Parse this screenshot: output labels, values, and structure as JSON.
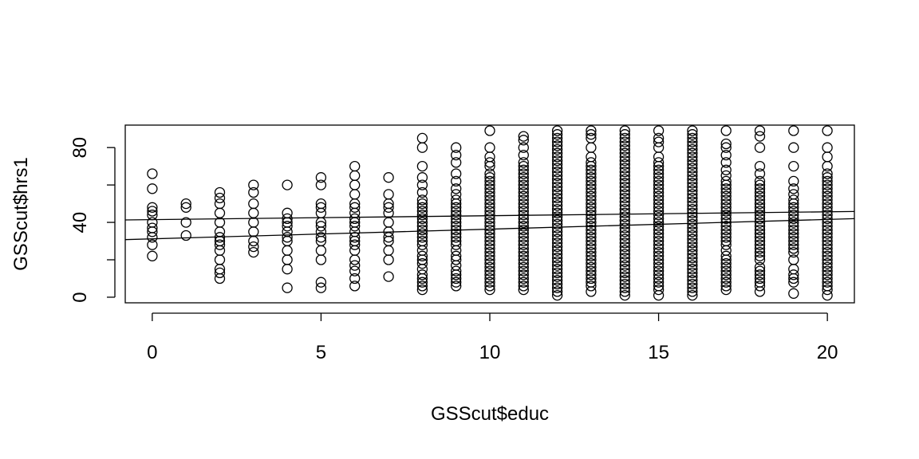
{
  "chart_data": {
    "type": "scatter",
    "xlabel": "GSScut$educ",
    "ylabel": "GSScut$hrs1",
    "xlim": [
      -0.8,
      20.8
    ],
    "ylim": [
      -3,
      92
    ],
    "x_ticks": [
      0,
      5,
      10,
      15,
      20
    ],
    "x_tick_labels": [
      "0",
      "5",
      "10",
      "15",
      "20"
    ],
    "y_ticks": [
      0,
      20,
      40,
      60,
      80
    ],
    "y_tick_labels": [
      "0",
      "40",
      "80"
    ],
    "y_labeled_ticks": [
      0,
      40,
      80
    ],
    "grid": false,
    "series": [
      {
        "marker": "open-circle",
        "points_by_x": [
          {
            "x": 0,
            "y": [
              66,
              58,
              48,
              46,
              44,
              40,
              37,
              35,
              32,
              28,
              22
            ]
          },
          {
            "x": 1,
            "y": [
              50,
              48,
              40,
              33
            ]
          },
          {
            "x": 2,
            "y": [
              56,
              53,
              50,
              45,
              40,
              35,
              32,
              30,
              28,
              25,
              20,
              15,
              13,
              10
            ]
          },
          {
            "x": 3,
            "y": [
              60,
              56,
              50,
              45,
              40,
              35,
              30,
              27,
              24
            ]
          },
          {
            "x": 4,
            "y": [
              60,
              45,
              42,
              40,
              38,
              35,
              32,
              30,
              25,
              20,
              15,
              5
            ]
          },
          {
            "x": 5,
            "y": [
              64,
              60,
              50,
              48,
              45,
              40,
              38,
              35,
              32,
              30,
              25,
              20,
              8,
              5
            ]
          },
          {
            "x": 6,
            "y": [
              70,
              65,
              60,
              55,
              50,
              48,
              45,
              42,
              40,
              38,
              35,
              32,
              30,
              28,
              25,
              20,
              17,
              14,
              10,
              6
            ]
          },
          {
            "x": 7,
            "y": [
              64,
              55,
              50,
              48,
              45,
              40,
              35,
              32,
              30,
              25,
              20,
              11
            ]
          },
          {
            "x": 8,
            "y": [
              85,
              80,
              70,
              64,
              60,
              56,
              52,
              50,
              48,
              46,
              44,
              42,
              40,
              38,
              36,
              34,
              32,
              30,
              28,
              25,
              22,
              20,
              18,
              15,
              12,
              10,
              8,
              6,
              4
            ]
          },
          {
            "x": 9,
            "y": [
              80,
              76,
              72,
              66,
              62,
              58,
              55,
              52,
              50,
              48,
              46,
              44,
              42,
              40,
              38,
              36,
              34,
              32,
              30,
              28,
              25,
              22,
              20,
              17,
              14,
              12,
              10,
              8,
              6
            ]
          },
          {
            "x": 10,
            "y": [
              89,
              80,
              75,
              72,
              70,
              66,
              64,
              62,
              60,
              58,
              56,
              54,
              52,
              50,
              48,
              46,
              44,
              42,
              40,
              38,
              36,
              34,
              32,
              30,
              28,
              26,
              24,
              22,
              20,
              18,
              16,
              14,
              12,
              10,
              8,
              6,
              4
            ]
          },
          {
            "x": 11,
            "y": [
              86,
              84,
              80,
              76,
              72,
              70,
              68,
              66,
              64,
              62,
              60,
              58,
              56,
              54,
              52,
              50,
              48,
              46,
              44,
              42,
              40,
              38,
              36,
              34,
              32,
              30,
              28,
              26,
              24,
              22,
              20,
              18,
              16,
              14,
              12,
              10,
              8,
              6,
              4
            ]
          },
          {
            "x": 12,
            "y": [
              89,
              87,
              85,
              83,
              81,
              79,
              77,
              75,
              73,
              71,
              69,
              67,
              65,
              63,
              61,
              59,
              57,
              55,
              53,
              51,
              49,
              47,
              45,
              43,
              41,
              39,
              37,
              35,
              33,
              31,
              29,
              27,
              25,
              23,
              21,
              19,
              17,
              15,
              13,
              11,
              9,
              7,
              5,
              3,
              1
            ]
          },
          {
            "x": 13,
            "y": [
              89,
              87,
              85,
              80,
              75,
              72,
              70,
              68,
              66,
              64,
              62,
              60,
              58,
              56,
              54,
              52,
              50,
              48,
              46,
              44,
              42,
              40,
              38,
              36,
              34,
              32,
              30,
              28,
              26,
              24,
              22,
              20,
              18,
              16,
              14,
              12,
              10,
              8,
              6,
              3
            ]
          },
          {
            "x": 14,
            "y": [
              89,
              87,
              85,
              83,
              81,
              79,
              77,
              75,
              73,
              71,
              69,
              67,
              65,
              63,
              61,
              59,
              57,
              55,
              53,
              51,
              49,
              47,
              45,
              43,
              41,
              39,
              37,
              35,
              33,
              31,
              29,
              27,
              25,
              23,
              21,
              19,
              17,
              15,
              13,
              11,
              9,
              7,
              5,
              3,
              1
            ]
          },
          {
            "x": 15,
            "y": [
              89,
              85,
              83,
              80,
              75,
              72,
              70,
              68,
              66,
              64,
              62,
              60,
              58,
              56,
              54,
              52,
              50,
              48,
              46,
              44,
              42,
              40,
              38,
              36,
              34,
              32,
              30,
              28,
              26,
              24,
              22,
              20,
              18,
              16,
              14,
              12,
              10,
              8,
              6,
              4,
              1
            ]
          },
          {
            "x": 16,
            "y": [
              89,
              87,
              85,
              83,
              81,
              79,
              77,
              75,
              73,
              71,
              69,
              67,
              65,
              63,
              61,
              59,
              57,
              55,
              53,
              51,
              49,
              47,
              45,
              43,
              41,
              39,
              37,
              35,
              33,
              31,
              29,
              27,
              25,
              23,
              21,
              19,
              17,
              15,
              13,
              11,
              9,
              7,
              5,
              3,
              1
            ]
          },
          {
            "x": 17,
            "y": [
              89,
              82,
              80,
              76,
              72,
              68,
              65,
              62,
              60,
              58,
              56,
              54,
              52,
              50,
              48,
              46,
              44,
              42,
              40,
              38,
              36,
              34,
              32,
              30,
              28,
              25,
              22,
              20,
              18,
              16,
              14,
              12,
              10,
              8,
              6,
              4
            ]
          },
          {
            "x": 18,
            "y": [
              89,
              86,
              80,
              70,
              66,
              62,
              60,
              58,
              56,
              54,
              52,
              50,
              48,
              46,
              44,
              42,
              40,
              38,
              36,
              34,
              32,
              30,
              28,
              26,
              24,
              22,
              20,
              16,
              14,
              12,
              10,
              8,
              6,
              3
            ]
          },
          {
            "x": 19,
            "y": [
              89,
              80,
              70,
              62,
              58,
              55,
              52,
              50,
              48,
              46,
              44,
              42,
              40,
              38,
              36,
              34,
              32,
              30,
              28,
              26,
              24,
              20,
              15,
              12,
              10,
              8,
              2
            ]
          },
          {
            "x": 20,
            "y": [
              89,
              80,
              75,
              70,
              66,
              64,
              62,
              60,
              58,
              56,
              54,
              52,
              50,
              48,
              46,
              44,
              42,
              40,
              38,
              36,
              34,
              32,
              30,
              28,
              26,
              24,
              22,
              20,
              18,
              16,
              14,
              12,
              10,
              8,
              6,
              4,
              1
            ]
          }
        ]
      }
    ],
    "lines": [
      {
        "x": [
          -0.8,
          20.8
        ],
        "y": [
          41.3,
          45.8
        ]
      },
      {
        "x": [
          -0.8,
          20.8
        ],
        "y": [
          30.8,
          42.0
        ]
      }
    ]
  }
}
